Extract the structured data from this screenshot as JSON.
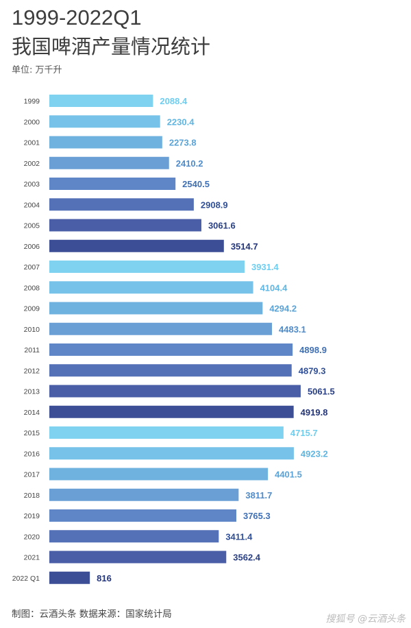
{
  "header": {
    "title_line1": "1999-2022Q1",
    "title_line2": "我国啤酒产量情况统计",
    "unit": "单位: 万千升"
  },
  "footer": {
    "source": "制图：云酒头条  数据来源：国家统计局",
    "watermark": "搜狐号 @云酒头条"
  },
  "chart_data": {
    "type": "bar",
    "orientation": "horizontal",
    "categories": [
      "1999",
      "2000",
      "2001",
      "2002",
      "2003",
      "2004",
      "2005",
      "2006",
      "2007",
      "2008",
      "2009",
      "2010",
      "2011",
      "2012",
      "2013",
      "2014",
      "2015",
      "2016",
      "2017",
      "2018",
      "2019",
      "2020",
      "2021",
      "2022 Q1"
    ],
    "values": [
      2088.4,
      2230.4,
      2273.8,
      2410.2,
      2540.5,
      2908.9,
      3061.6,
      3514.7,
      3931.4,
      4104.4,
      4294.2,
      4483.1,
      4898.9,
      4879.3,
      5061.5,
      4919.8,
      4715.7,
      4923.2,
      4401.5,
      3811.7,
      3765.3,
      3411.4,
      3562.4,
      816
    ],
    "value_labels": [
      "2088.4",
      "2230.4",
      "2273.8",
      "2410.2",
      "2540.5",
      "2908.9",
      "3061.6",
      "3514.7",
      "3931.4",
      "4104.4",
      "4294.2",
      "4483.1",
      "4898.9",
      "4879.3",
      "5061.5",
      "4919.8",
      "4715.7",
      "4923.2",
      "4401.5",
      "3811.7",
      "3765.3",
      "3411.4",
      "3562.4",
      "816"
    ],
    "bar_colors": [
      "#7fd3f1",
      "#76c2e8",
      "#6fb1df",
      "#6a9fd6",
      "#5f86c6",
      "#5470b7",
      "#4a5ea7",
      "#3c4e96",
      "#7fd3f1",
      "#76c2e8",
      "#6fb1df",
      "#6a9fd6",
      "#5f86c6",
      "#5470b7",
      "#4a5ea7",
      "#3c4e96",
      "#7fd3f1",
      "#76c2e8",
      "#6fb1df",
      "#6a9fd6",
      "#5f86c6",
      "#5470b7",
      "#4a5ea7",
      "#3c4e96"
    ],
    "label_colors": [
      "#6fcdef",
      "#5fb6e2",
      "#5aa3d8",
      "#4f8bc9",
      "#3f6fb4",
      "#304f97",
      "#283f86",
      "#23357a",
      "#6fcdef",
      "#5fb6e2",
      "#5aa3d8",
      "#4f8bc9",
      "#3f6fb4",
      "#304f97",
      "#283f86",
      "#23357a",
      "#6fcdef",
      "#5fb6e2",
      "#5aa3d8",
      "#4f8bc9",
      "#3f6fb4",
      "#304f97",
      "#283f86",
      "#23357a"
    ]
  }
}
